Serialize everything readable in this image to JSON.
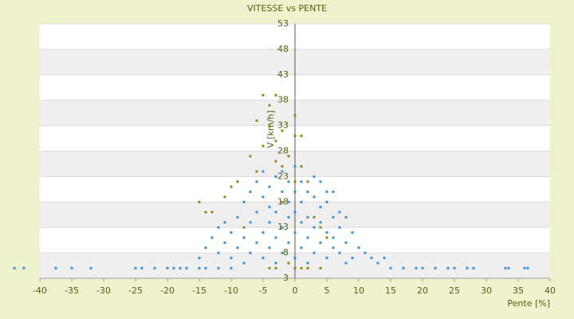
{
  "chart_data": {
    "type": "scatter",
    "title": "VITESSE vs PENTE",
    "x_label": "Pente [%]",
    "y_label": "V [km/h]",
    "xlim": [
      -40,
      40
    ],
    "xticks": [
      -40,
      -35,
      -30,
      -25,
      -20,
      -15,
      -10,
      -5,
      0,
      5,
      10,
      15,
      20,
      25,
      30,
      35,
      40
    ],
    "ylim": [
      3,
      53
    ],
    "yticks": [
      3,
      8,
      13,
      18,
      23,
      28,
      33,
      38,
      43,
      48,
      53
    ],
    "series": [
      {
        "color": "#3b8fdb",
        "x": [
          -44,
          -42.5,
          -37.5,
          -35,
          -32,
          -25,
          -24,
          -22,
          -20,
          -19,
          -18,
          -17,
          -15,
          -14,
          -12,
          -10,
          15,
          17,
          19,
          20,
          22,
          24,
          25,
          27,
          28,
          33,
          33.5,
          36,
          36.5,
          -12,
          -11,
          -10,
          -10,
          -9,
          -9,
          -8,
          -8,
          -8,
          -7,
          -7,
          -7,
          -6,
          -6,
          -6,
          -5,
          -5,
          -5,
          -5,
          -4,
          -4,
          -4,
          -4,
          -3,
          -3,
          -3,
          -3,
          -2,
          -2,
          -2,
          -2,
          -1,
          -1,
          -1,
          -1,
          0,
          0,
          0,
          0,
          0,
          1,
          1,
          1,
          1,
          2,
          2,
          2,
          2,
          3,
          3,
          3,
          4,
          4,
          4,
          5,
          5,
          5,
          6,
          6,
          6,
          7,
          7,
          8,
          8,
          9,
          9,
          10,
          11,
          12,
          13,
          14,
          -13,
          -14,
          -15,
          -11,
          -12,
          3,
          4,
          5,
          6,
          7,
          8
        ],
        "y": [
          5,
          5,
          5,
          5,
          5,
          5,
          5,
          5,
          5,
          5,
          5,
          5,
          5,
          5,
          5,
          5,
          5,
          5,
          5,
          5,
          5,
          5,
          5,
          5,
          5,
          5,
          5,
          5,
          5,
          8,
          10,
          12,
          7,
          15,
          9,
          11,
          18,
          6,
          14,
          20,
          8,
          16,
          10,
          22,
          12,
          19,
          7,
          24,
          14,
          21,
          9,
          17,
          11,
          23,
          16,
          6,
          13,
          20,
          24,
          8,
          15,
          22,
          10,
          18,
          12,
          20,
          25,
          7,
          16,
          14,
          22,
          9,
          18,
          11,
          20,
          15,
          6,
          13,
          19,
          8,
          10,
          17,
          14,
          12,
          18,
          7,
          9,
          15,
          11,
          13,
          8,
          10,
          6,
          12,
          7,
          9,
          8,
          7,
          6,
          7,
          11,
          9,
          7,
          14,
          13,
          23,
          22,
          20,
          20,
          16,
          15
        ]
      },
      {
        "color": "#8c8c10",
        "x": [
          -5,
          -4,
          -3,
          -6,
          -4,
          -3,
          -5,
          -2,
          0,
          -1,
          -7,
          -9,
          -10,
          -15,
          -14,
          -6,
          -3,
          -2,
          1,
          0,
          2,
          -1,
          0,
          1,
          2,
          -3,
          -4,
          4,
          3,
          4,
          5,
          -2,
          -8,
          -11,
          0,
          1,
          -13
        ],
        "y": [
          39,
          37,
          39,
          34,
          33,
          30,
          29,
          32,
          31,
          27,
          27,
          22,
          21,
          18,
          16,
          24,
          26,
          25,
          25,
          22,
          22,
          6,
          5,
          5,
          5,
          5,
          5,
          5,
          15,
          13,
          11,
          18,
          13,
          19,
          35,
          31,
          16
        ]
      }
    ]
  }
}
